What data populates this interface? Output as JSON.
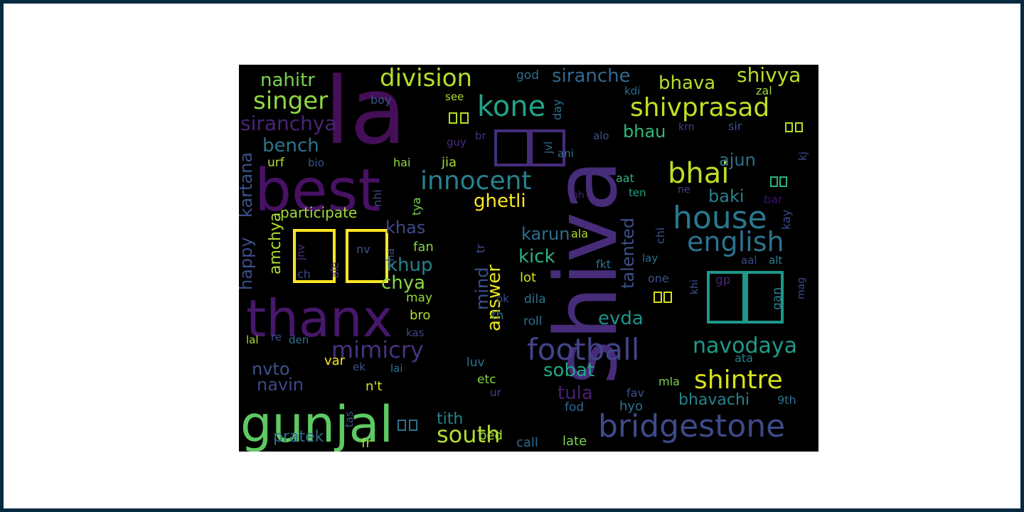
{
  "colors": {
    "frame": "#062a3f",
    "page": "#ffffff",
    "cloud_background": "#000000"
  },
  "words": [
    {
      "text": "la",
      "color": "#440f56"
    },
    {
      "text": "shiva",
      "color": "#472c7a"
    },
    {
      "text": "best",
      "color": "#471164"
    },
    {
      "text": "thanx",
      "color": "#46176a"
    },
    {
      "text": "gunjal",
      "color": "#5ec962"
    },
    {
      "text": "bridgestone",
      "color": "#3e4a89"
    },
    {
      "text": "football",
      "color": "#414487"
    },
    {
      "text": "shivprasad",
      "color": "#c2df23"
    },
    {
      "text": "house",
      "color": "#2a788e"
    },
    {
      "text": "english",
      "color": "#2c728e"
    },
    {
      "text": "innocent",
      "color": "#26828e"
    },
    {
      "text": "division",
      "color": "#b5de2b"
    },
    {
      "text": "singer",
      "color": "#90d743"
    },
    {
      "text": "kone",
      "color": "#20a386"
    },
    {
      "text": "bhai",
      "color": "#bddf26"
    },
    {
      "text": "shintre",
      "color": "#d8e219"
    },
    {
      "text": "navodaya",
      "color": "#1f9a8a"
    },
    {
      "text": "south",
      "color": "#b2dd2d"
    },
    {
      "text": "mimicry",
      "color": "#46337e"
    },
    {
      "text": "siranchya",
      "color": "#482475"
    },
    {
      "text": "siranche",
      "color": "#31688e"
    },
    {
      "text": "shivya",
      "color": "#bade28"
    },
    {
      "text": "bhava",
      "color": "#b8de29"
    },
    {
      "text": "nahitr",
      "color": "#7ad151"
    },
    {
      "text": "bench",
      "color": "#2a768e"
    },
    {
      "text": "bhau",
      "color": "#35b779"
    },
    {
      "text": "ajun",
      "color": "#2c728e"
    },
    {
      "text": "baki",
      "color": "#277f8e"
    },
    {
      "text": "ghetli",
      "color": "#fde725"
    },
    {
      "text": "karun",
      "color": "#2e6e8e"
    },
    {
      "text": "kick",
      "color": "#2db27d"
    },
    {
      "text": "khup",
      "color": "#26818e"
    },
    {
      "text": "chya",
      "color": "#89d548"
    },
    {
      "text": "khas",
      "color": "#3e4a89"
    },
    {
      "text": "participate",
      "color": "#a0da39"
    },
    {
      "text": "kartana",
      "color": "#3b528b"
    },
    {
      "text": "happy",
      "color": "#3d4d8a"
    },
    {
      "text": "amchya",
      "color": "#addc30"
    },
    {
      "text": "talented",
      "color": "#3c4f8a"
    },
    {
      "text": "mind",
      "color": "#3b528b"
    },
    {
      "text": "answer",
      "color": "#e5e419"
    },
    {
      "text": "evda",
      "color": "#20928c"
    },
    {
      "text": "sobat",
      "color": "#22a785"
    },
    {
      "text": "tula",
      "color": "#481f70"
    },
    {
      "text": "bhavachi",
      "color": "#26828e"
    },
    {
      "text": "nvto",
      "color": "#3b528b"
    },
    {
      "text": "navin",
      "color": "#3f4788"
    },
    {
      "text": "pratek",
      "color": "#2f6c8e"
    },
    {
      "text": "tith",
      "color": "#26818e"
    },
    {
      "text": "bed",
      "color": "#a2da37"
    },
    {
      "text": "call",
      "color": "#31688e"
    },
    {
      "text": "late",
      "color": "#7fd34e"
    },
    {
      "text": "fr",
      "color": "#addc30"
    },
    {
      "text": "god",
      "color": "#2d708e"
    },
    {
      "text": "kdi",
      "color": "#2f6b8e"
    },
    {
      "text": "zal",
      "color": "#9dd93b"
    },
    {
      "text": "boy",
      "color": "#3a548c"
    },
    {
      "text": "see",
      "color": "#b0dd2f"
    },
    {
      "text": "day",
      "color": "#2c728e"
    },
    {
      "text": "guy",
      "color": "#472d7b"
    },
    {
      "text": "br",
      "color": "#472c7a"
    },
    {
      "text": "alo",
      "color": "#3b528b"
    },
    {
      "text": "krn",
      "color": "#443983"
    },
    {
      "text": "sir",
      "color": "#3b528b"
    },
    {
      "text": "jvl",
      "color": "#2d708e"
    },
    {
      "text": "ani",
      "color": "#2c728e"
    },
    {
      "text": "kj",
      "color": "#3e4989"
    },
    {
      "text": "urf",
      "color": "#b5de2b"
    },
    {
      "text": "bio",
      "color": "#38588c"
    },
    {
      "text": "hai",
      "color": "#8fd744"
    },
    {
      "text": "jia",
      "color": "#a5db36"
    },
    {
      "text": "nhi",
      "color": "#3f4788"
    },
    {
      "text": "tya",
      "color": "#7ad151"
    },
    {
      "text": "aat",
      "color": "#2db27d"
    },
    {
      "text": "ten",
      "color": "#1fa088"
    },
    {
      "text": "ne",
      "color": "#424186"
    },
    {
      "text": "bar",
      "color": "#3b0f70"
    },
    {
      "text": "kay",
      "color": "#3e4989"
    },
    {
      "text": "nh",
      "color": "#482878"
    },
    {
      "text": "chi",
      "color": "#3b528b"
    },
    {
      "text": "jnv",
      "color": "#46327e"
    },
    {
      "text": "ch",
      "color": "#3e4989"
    },
    {
      "text": "nv",
      "color": "#3b528b"
    },
    {
      "text": "fan",
      "color": "#84d44b"
    },
    {
      "text": "cha",
      "color": "#3b528b"
    },
    {
      "text": "tr",
      "color": "#3a548c"
    },
    {
      "text": "ale",
      "color": "#433e85"
    },
    {
      "text": "ala",
      "color": "#addc30"
    },
    {
      "text": "fkt",
      "color": "#2c738e"
    },
    {
      "text": "lay",
      "color": "#2f6c8e"
    },
    {
      "text": "aal",
      "color": "#3d4d8a"
    },
    {
      "text": "alt",
      "color": "#26828e"
    },
    {
      "text": "gp",
      "color": "#482576"
    },
    {
      "text": "gan",
      "color": "#26818e"
    },
    {
      "text": "khi",
      "color": "#3b528b"
    },
    {
      "text": "one",
      "color": "#3b528b"
    },
    {
      "text": "mag",
      "color": "#3e4a89"
    },
    {
      "text": "lot",
      "color": "#d2e21b"
    },
    {
      "text": "may",
      "color": "#9bd93c"
    },
    {
      "text": "dila",
      "color": "#2a778e"
    },
    {
      "text": "ok",
      "color": "#3e4989"
    },
    {
      "text": "th",
      "color": "#2d708e"
    },
    {
      "text": "bro",
      "color": "#b0dd2f"
    },
    {
      "text": "roll",
      "color": "#2c728e"
    },
    {
      "text": "kas",
      "color": "#414487"
    },
    {
      "text": "lal",
      "color": "#a8db34"
    },
    {
      "text": "re",
      "color": "#3e4a89"
    },
    {
      "text": "den",
      "color": "#2d708e"
    },
    {
      "text": "var",
      "color": "#fde725"
    },
    {
      "text": "ek",
      "color": "#3b528b"
    },
    {
      "text": "lai",
      "color": "#2c728e"
    },
    {
      "text": "luv",
      "color": "#2c728e"
    },
    {
      "text": "n't",
      "color": "#d5e21a"
    },
    {
      "text": "etc",
      "color": "#84d44b"
    },
    {
      "text": "ur",
      "color": "#3e4a89"
    },
    {
      "text": "fav",
      "color": "#3b528b"
    },
    {
      "text": "hyo",
      "color": "#2c728e"
    },
    {
      "text": "fod",
      "color": "#31688e"
    },
    {
      "text": "mla",
      "color": "#7ad151"
    },
    {
      "text": "ata",
      "color": "#26818e"
    },
    {
      "text": "9th",
      "color": "#2d708e"
    },
    {
      "text": "tas",
      "color": "#3b528b"
    }
  ]
}
